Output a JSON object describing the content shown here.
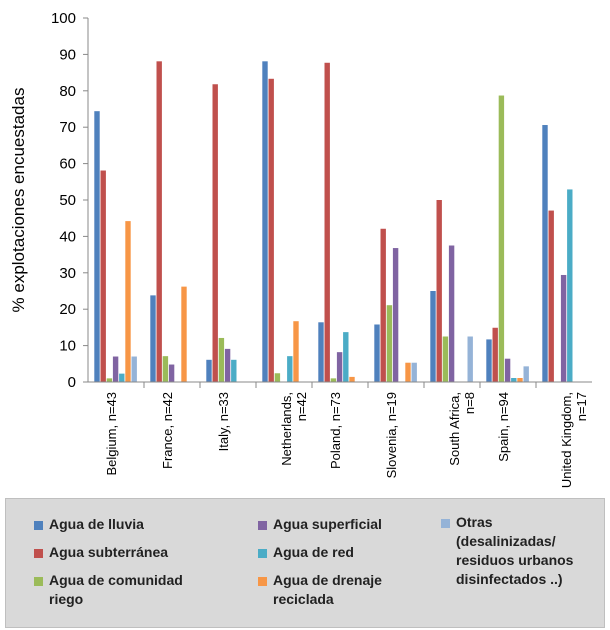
{
  "chart_data": {
    "type": "bar",
    "ylabel": "% explotaciones encuestadas",
    "ylim": [
      0,
      100
    ],
    "yticks": [
      0,
      10,
      20,
      30,
      40,
      50,
      60,
      70,
      80,
      90,
      100
    ],
    "grid": false,
    "legend_position": "bottom",
    "categories": [
      "Belgium, n=43",
      "France, n=42",
      "Italy, n=33",
      "Netherlands,\nn=42",
      "Poland, n=73",
      "Slovenia, n=19",
      "South Africa,\nn=8",
      "Spain, n=94",
      "United Kingdom,\nn=17"
    ],
    "series": [
      {
        "name": "Agua de lluvia",
        "color": "#4f81bd",
        "values": [
          74.4,
          23.8,
          6.1,
          88.1,
          16.4,
          15.8,
          25.0,
          11.7,
          70.6
        ]
      },
      {
        "name": "Agua subterránea",
        "color": "#c0504d",
        "values": [
          58.1,
          88.1,
          81.8,
          83.3,
          87.7,
          42.1,
          50.0,
          14.9,
          47.1
        ]
      },
      {
        "name": "Agua de comunidad riego",
        "color": "#9bbb59",
        "values": [
          1.0,
          7.1,
          12.1,
          2.4,
          1.0,
          21.1,
          12.5,
          78.7,
          0
        ]
      },
      {
        "name": "Agua superficial",
        "color": "#8064a2",
        "values": [
          7.0,
          4.8,
          9.1,
          0,
          8.2,
          36.8,
          37.5,
          6.4,
          29.4
        ]
      },
      {
        "name": "Agua de red",
        "color": "#4bacc6",
        "values": [
          2.3,
          0,
          6.1,
          7.1,
          13.7,
          0,
          0,
          1.1,
          52.9
        ]
      },
      {
        "name": "Agua de drenaje reciclada",
        "color": "#f79646",
        "values": [
          44.2,
          26.2,
          0,
          16.7,
          1.4,
          5.3,
          0,
          1.1,
          0
        ]
      },
      {
        "name": "Otras (desalinizadas/ residuos urbanos disinfectados ..)",
        "color": "#95b3d7",
        "values": [
          7.0,
          0,
          0,
          0,
          0,
          5.3,
          12.5,
          4.3,
          0
        ]
      }
    ]
  },
  "legend": {
    "items": [
      {
        "label": "Agua de lluvia",
        "color": "#4f81bd"
      },
      {
        "label": "Agua subterránea",
        "color": "#c0504d"
      },
      {
        "label": "Agua de comunidad\nriego",
        "color": "#9bbb59"
      },
      {
        "label": "Agua superficial",
        "color": "#8064a2"
      },
      {
        "label": "Agua de red",
        "color": "#4bacc6"
      },
      {
        "label": "Agua de drenaje\nreciclada",
        "color": "#f79646"
      },
      {
        "label": "Otras\n(desalinizadas/\nresiduos urbanos\ndisinfectados ..)",
        "color": "#95b3d7"
      }
    ]
  }
}
